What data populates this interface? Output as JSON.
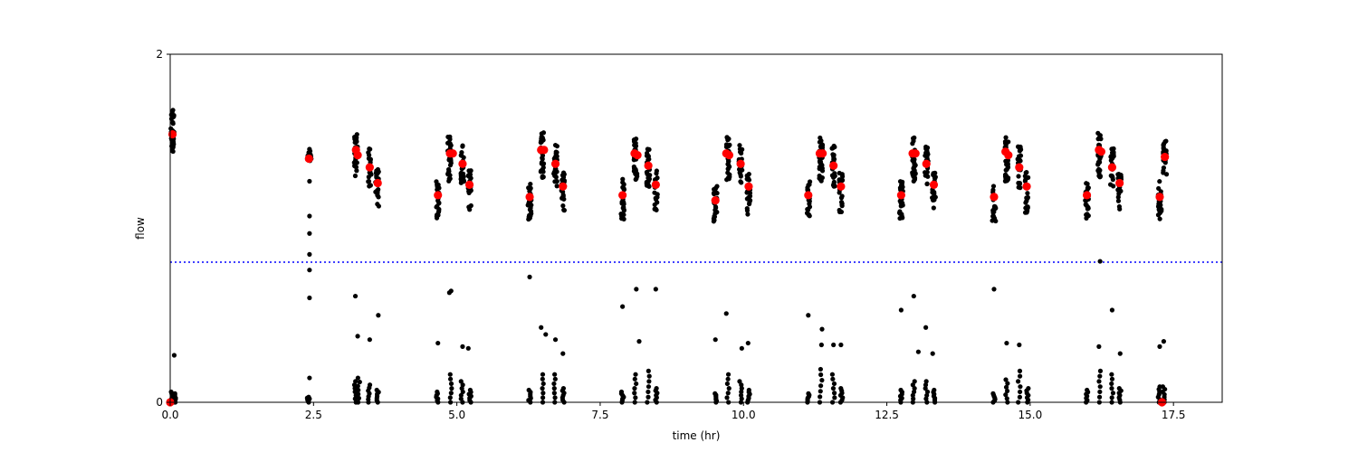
{
  "chart_data": {
    "type": "scatter",
    "title": "",
    "xlabel": "time (hr)",
    "ylabel": "flow",
    "xlim": [
      0,
      18.35
    ],
    "ylim": [
      0,
      2
    ],
    "xticks": [
      0.0,
      2.5,
      5.0,
      7.5,
      10.0,
      12.5,
      15.0,
      17.5
    ],
    "xtick_labels": [
      "0.0",
      "2.5",
      "5.0",
      "7.5",
      "10.0",
      "12.5",
      "15.0",
      "17.5"
    ],
    "yticks": [
      0,
      2
    ],
    "ytick_labels": [
      "0",
      "2"
    ],
    "grid": false,
    "legend": "none",
    "threshold_line": {
      "y": 0.805,
      "style": "dotted",
      "color": "#0000ff"
    },
    "cluster_series": {
      "name": "",
      "color": "#000000",
      "clusters": [
        {
          "x": 0.04,
          "center": 1.56,
          "spread": 0.12,
          "n": 40
        },
        {
          "x": 2.43,
          "center": 1.4,
          "spread": 0.06,
          "n": 10
        },
        {
          "x": 3.24,
          "center": 1.42,
          "spread": 0.12,
          "n": 28
        },
        {
          "x": 3.48,
          "center": 1.35,
          "spread": 0.11,
          "n": 22
        },
        {
          "x": 3.61,
          "center": 1.23,
          "spread": 0.11,
          "n": 22
        },
        {
          "x": 4.67,
          "center": 1.16,
          "spread": 0.11,
          "n": 24
        },
        {
          "x": 4.87,
          "center": 1.4,
          "spread": 0.13,
          "n": 32
        },
        {
          "x": 5.1,
          "center": 1.37,
          "spread": 0.12,
          "n": 24
        },
        {
          "x": 5.22,
          "center": 1.22,
          "spread": 0.12,
          "n": 22
        },
        {
          "x": 6.27,
          "center": 1.16,
          "spread": 0.11,
          "n": 24
        },
        {
          "x": 6.49,
          "center": 1.42,
          "spread": 0.13,
          "n": 32
        },
        {
          "x": 6.72,
          "center": 1.36,
          "spread": 0.12,
          "n": 24
        },
        {
          "x": 6.85,
          "center": 1.21,
          "spread": 0.12,
          "n": 22
        },
        {
          "x": 7.89,
          "center": 1.17,
          "spread": 0.12,
          "n": 24
        },
        {
          "x": 8.12,
          "center": 1.4,
          "spread": 0.13,
          "n": 32
        },
        {
          "x": 8.34,
          "center": 1.36,
          "spread": 0.12,
          "n": 24
        },
        {
          "x": 8.47,
          "center": 1.22,
          "spread": 0.12,
          "n": 22
        },
        {
          "x": 9.51,
          "center": 1.14,
          "spread": 0.11,
          "n": 24
        },
        {
          "x": 9.73,
          "center": 1.4,
          "spread": 0.13,
          "n": 32
        },
        {
          "x": 9.95,
          "center": 1.37,
          "spread": 0.12,
          "n": 24
        },
        {
          "x": 10.09,
          "center": 1.2,
          "spread": 0.12,
          "n": 22
        },
        {
          "x": 11.13,
          "center": 1.17,
          "spread": 0.11,
          "n": 24
        },
        {
          "x": 11.35,
          "center": 1.4,
          "spread": 0.13,
          "n": 32
        },
        {
          "x": 11.57,
          "center": 1.36,
          "spread": 0.12,
          "n": 24
        },
        {
          "x": 11.7,
          "center": 1.21,
          "spread": 0.12,
          "n": 22
        },
        {
          "x": 12.75,
          "center": 1.16,
          "spread": 0.11,
          "n": 24
        },
        {
          "x": 12.97,
          "center": 1.4,
          "spread": 0.13,
          "n": 32
        },
        {
          "x": 13.19,
          "center": 1.37,
          "spread": 0.12,
          "n": 24
        },
        {
          "x": 13.32,
          "center": 1.22,
          "spread": 0.12,
          "n": 22
        },
        {
          "x": 14.37,
          "center": 1.15,
          "spread": 0.11,
          "n": 24
        },
        {
          "x": 14.59,
          "center": 1.4,
          "spread": 0.13,
          "n": 32
        },
        {
          "x": 14.81,
          "center": 1.35,
          "spread": 0.12,
          "n": 24
        },
        {
          "x": 14.94,
          "center": 1.21,
          "spread": 0.12,
          "n": 22
        },
        {
          "x": 15.99,
          "center": 1.16,
          "spread": 0.11,
          "n": 24
        },
        {
          "x": 16.21,
          "center": 1.42,
          "spread": 0.13,
          "n": 32
        },
        {
          "x": 16.43,
          "center": 1.35,
          "spread": 0.12,
          "n": 24
        },
        {
          "x": 16.56,
          "center": 1.22,
          "spread": 0.12,
          "n": 22
        },
        {
          "x": 17.26,
          "center": 1.16,
          "spread": 0.11,
          "n": 22
        },
        {
          "x": 17.35,
          "center": 1.4,
          "spread": 0.11,
          "n": 22
        }
      ]
    },
    "scattered_points": {
      "name": "",
      "color": "#000000",
      "x": [
        2.43,
        2.43,
        2.43,
        2.43,
        2.43,
        2.43,
        2.43,
        2.43,
        0.07,
        3.23,
        3.27,
        3.48,
        3.63,
        4.67,
        4.9,
        4.87,
        5.1,
        5.2,
        6.27,
        6.47,
        6.55,
        6.72,
        6.85,
        7.89,
        8.13,
        8.18,
        8.47,
        9.51,
        9.7,
        9.97,
        10.08,
        11.13,
        11.37,
        11.36,
        11.57,
        11.7,
        12.75,
        12.97,
        13.05,
        13.18,
        13.3,
        14.37,
        14.59,
        14.81,
        16.2,
        16.43,
        16.57,
        17.26,
        17.33,
        16.22
      ],
      "y": [
        1.27,
        1.07,
        0.97,
        0.85,
        0.76,
        0.6,
        0.14,
        0.02,
        0.27,
        0.61,
        0.38,
        0.36,
        0.5,
        0.34,
        0.64,
        0.63,
        0.32,
        0.31,
        0.72,
        0.43,
        0.39,
        0.36,
        0.28,
        0.55,
        0.65,
        0.35,
        0.65,
        0.36,
        0.51,
        0.31,
        0.34,
        0.5,
        0.42,
        0.33,
        0.33,
        0.33,
        0.53,
        0.61,
        0.29,
        0.43,
        0.28,
        0.65,
        0.34,
        0.33,
        0.32,
        0.53,
        0.28,
        0.32,
        0.35,
        0.81
      ]
    },
    "near_zero_clusters": {
      "name": "",
      "color": "#000000",
      "x": [
        0.02,
        0.05,
        0.08,
        2.41,
        3.23,
        3.29,
        3.47,
        3.62,
        4.66,
        4.89,
        5.09,
        5.23,
        6.27,
        6.49,
        6.71,
        6.86,
        7.89,
        8.11,
        8.34,
        8.48,
        9.51,
        9.73,
        9.95,
        10.09,
        11.13,
        11.35,
        11.57,
        11.71,
        12.75,
        12.97,
        13.19,
        13.32,
        14.37,
        14.59,
        14.81,
        14.95,
        15.99,
        16.21,
        16.43,
        16.57,
        17.25,
        17.33
      ],
      "y_max": [
        0.06,
        0.04,
        0.05,
        0.03,
        0.12,
        0.14,
        0.1,
        0.07,
        0.06,
        0.16,
        0.12,
        0.07,
        0.07,
        0.16,
        0.16,
        0.08,
        0.06,
        0.16,
        0.18,
        0.08,
        0.05,
        0.16,
        0.12,
        0.07,
        0.05,
        0.19,
        0.16,
        0.08,
        0.07,
        0.12,
        0.12,
        0.07,
        0.05,
        0.13,
        0.18,
        0.08,
        0.07,
        0.18,
        0.16,
        0.08,
        0.09,
        0.09
      ]
    },
    "means_series": {
      "name": "",
      "color": "#ff0000",
      "x": [
        0.04,
        2.42,
        3.24,
        3.27,
        3.48,
        3.62,
        4.67,
        4.88,
        4.93,
        5.1,
        5.22,
        6.27,
        6.47,
        6.52,
        6.72,
        6.85,
        7.89,
        8.1,
        8.15,
        8.34,
        8.47,
        9.51,
        9.7,
        9.75,
        9.95,
        10.09,
        11.13,
        11.33,
        11.38,
        11.57,
        11.7,
        12.75,
        12.95,
        13.0,
        13.19,
        13.32,
        14.37,
        14.57,
        14.62,
        14.81,
        14.94,
        15.99,
        16.2,
        16.24,
        16.43,
        16.56,
        17.26,
        17.35,
        0.0,
        17.3
      ],
      "y": [
        1.54,
        1.4,
        1.45,
        1.42,
        1.35,
        1.26,
        1.19,
        1.43,
        1.43,
        1.37,
        1.25,
        1.18,
        1.45,
        1.45,
        1.37,
        1.24,
        1.19,
        1.43,
        1.42,
        1.36,
        1.25,
        1.16,
        1.43,
        1.42,
        1.37,
        1.24,
        1.19,
        1.43,
        1.43,
        1.36,
        1.24,
        1.19,
        1.43,
        1.43,
        1.37,
        1.25,
        1.18,
        1.44,
        1.42,
        1.35,
        1.24,
        1.19,
        1.45,
        1.44,
        1.35,
        1.26,
        1.18,
        1.41,
        0.0,
        0.0
      ]
    }
  }
}
